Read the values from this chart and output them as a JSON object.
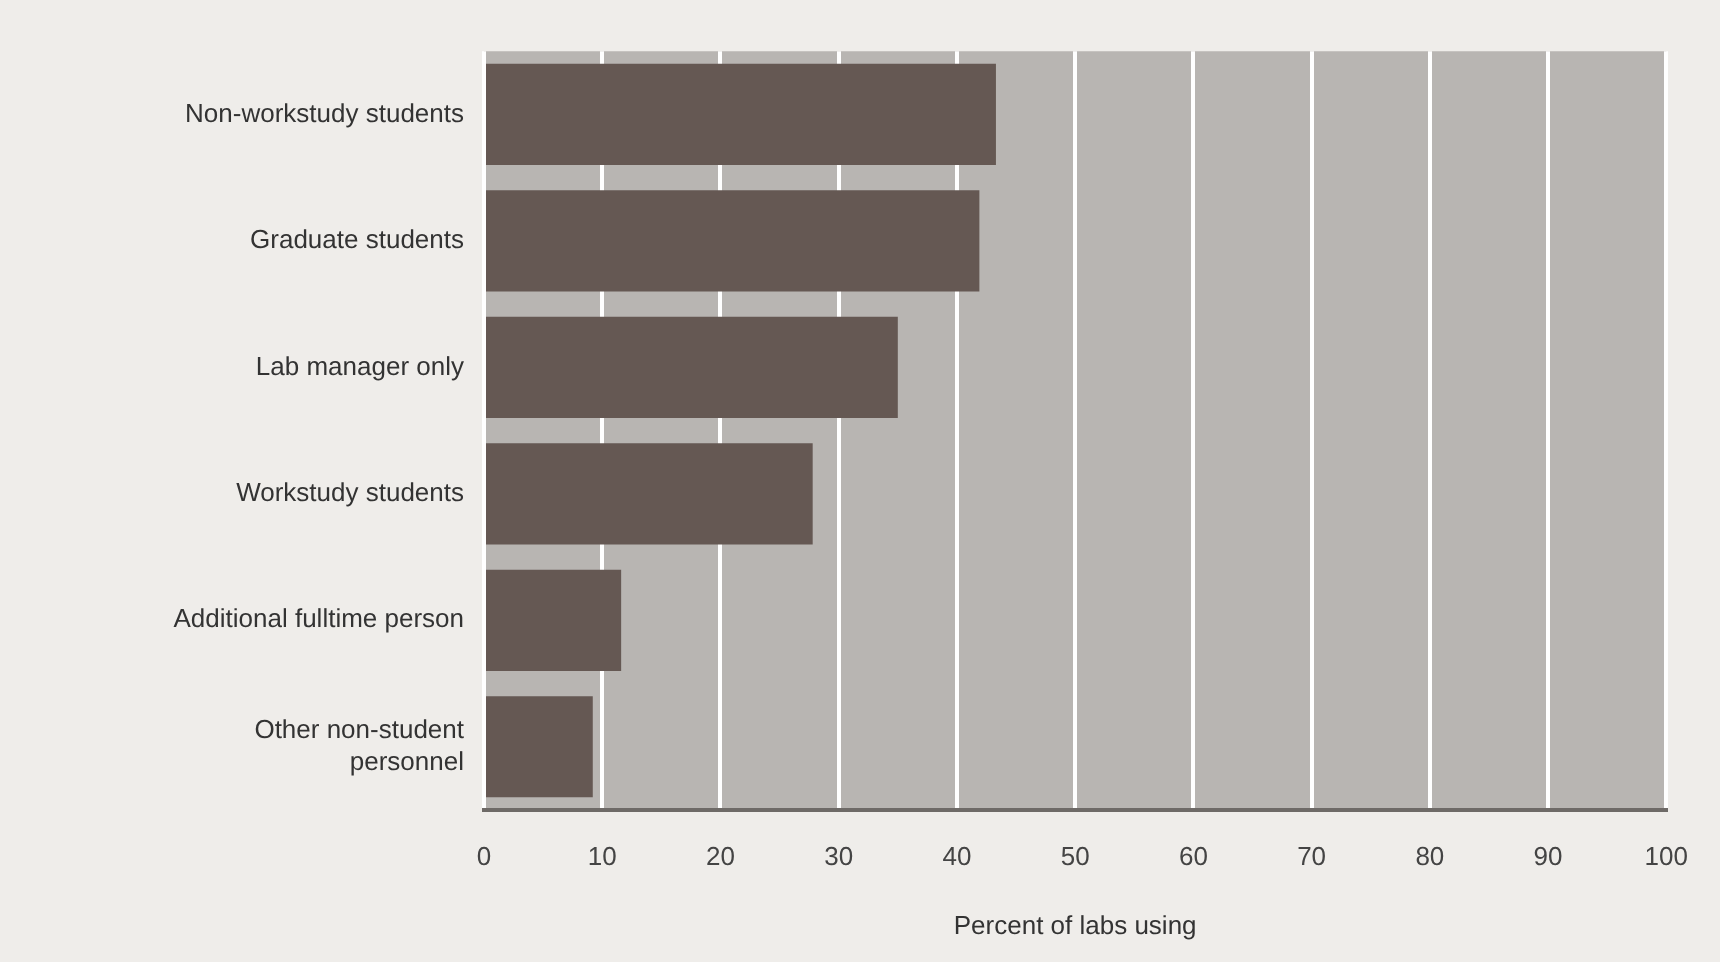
{
  "chart_data": {
    "type": "bar",
    "orientation": "horizontal",
    "xlabel": "Percent of labs using",
    "categories": [
      "Non-workstudy students",
      "Graduate students",
      "Lab manager only",
      "Workstudy students",
      "Additional fulltime person",
      "Other non-student personnel"
    ],
    "values": [
      43.3,
      41.9,
      35.0,
      27.8,
      11.6,
      9.2
    ],
    "color": "#655853",
    "xlim": [
      0,
      100
    ],
    "xticks": [
      0,
      10,
      20,
      30,
      40,
      50,
      60,
      70,
      80,
      90,
      100
    ],
    "grid": "x"
  }
}
